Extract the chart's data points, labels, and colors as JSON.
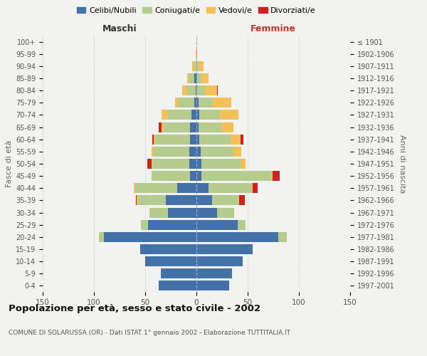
{
  "age_groups_bottom_to_top": [
    "0-4",
    "5-9",
    "10-14",
    "15-19",
    "20-24",
    "25-29",
    "30-34",
    "35-39",
    "40-44",
    "45-49",
    "50-54",
    "55-59",
    "60-64",
    "65-69",
    "70-74",
    "75-79",
    "80-84",
    "85-89",
    "90-94",
    "95-99",
    "100+"
  ],
  "birth_years_bottom_to_top": [
    "1997-2001",
    "1992-1996",
    "1987-1991",
    "1982-1986",
    "1977-1981",
    "1972-1976",
    "1967-1971",
    "1962-1966",
    "1957-1961",
    "1952-1956",
    "1947-1951",
    "1942-1946",
    "1937-1941",
    "1932-1936",
    "1927-1931",
    "1922-1926",
    "1917-1921",
    "1912-1916",
    "1907-1911",
    "1902-1906",
    "≤ 1901"
  ],
  "male_celibi": [
    37,
    35,
    50,
    55,
    90,
    47,
    28,
    30,
    19,
    6,
    7,
    7,
    6,
    6,
    5,
    2,
    1,
    2,
    0,
    0,
    0
  ],
  "male_coniugati": [
    0,
    0,
    0,
    0,
    5,
    7,
    18,
    27,
    41,
    38,
    36,
    35,
    34,
    26,
    23,
    16,
    8,
    5,
    2,
    0,
    0
  ],
  "male_vedovi": [
    0,
    0,
    0,
    0,
    0,
    0,
    0,
    1,
    1,
    0,
    1,
    2,
    2,
    2,
    6,
    3,
    5,
    2,
    2,
    1,
    0
  ],
  "male_divorziati": [
    0,
    0,
    0,
    0,
    0,
    0,
    0,
    1,
    0,
    0,
    4,
    0,
    1,
    3,
    0,
    0,
    0,
    0,
    0,
    0,
    0
  ],
  "fem_nubili": [
    32,
    35,
    45,
    55,
    80,
    40,
    20,
    15,
    12,
    5,
    5,
    4,
    3,
    2,
    3,
    2,
    0,
    1,
    0,
    0,
    0
  ],
  "fem_coniugate": [
    0,
    0,
    0,
    0,
    8,
    8,
    17,
    27,
    42,
    68,
    38,
    32,
    30,
    22,
    20,
    14,
    8,
    4,
    2,
    0,
    0
  ],
  "fem_vedove": [
    0,
    0,
    0,
    0,
    0,
    0,
    0,
    0,
    1,
    1,
    5,
    8,
    10,
    12,
    18,
    18,
    12,
    7,
    5,
    1,
    0
  ],
  "fem_divorziate": [
    0,
    0,
    0,
    0,
    0,
    0,
    0,
    5,
    5,
    7,
    0,
    0,
    3,
    0,
    0,
    0,
    1,
    0,
    0,
    0,
    0
  ],
  "colors_celibi": "#4472a8",
  "colors_coniugati": "#b5cc8e",
  "colors_vedovi": "#f5c05a",
  "colors_divorziati": "#cc2222",
  "xlim": 150,
  "title": "Popolazione per età, sesso e stato civile - 2002",
  "subtitle": "COMUNE DI SOLARUSSA (OR) - Dati ISTAT 1° gennaio 2002 - Elaborazione TUTTITALIA.IT",
  "ylabel_left": "Fasce di età",
  "ylabel_right": "Anni di nascita",
  "label_male": "Maschi",
  "label_female": "Femmine",
  "bg_color": "#f2f2ee",
  "legend_labels": [
    "Celibi/Nubili",
    "Coniugati/e",
    "Vedovi/e",
    "Divorziati/e"
  ]
}
